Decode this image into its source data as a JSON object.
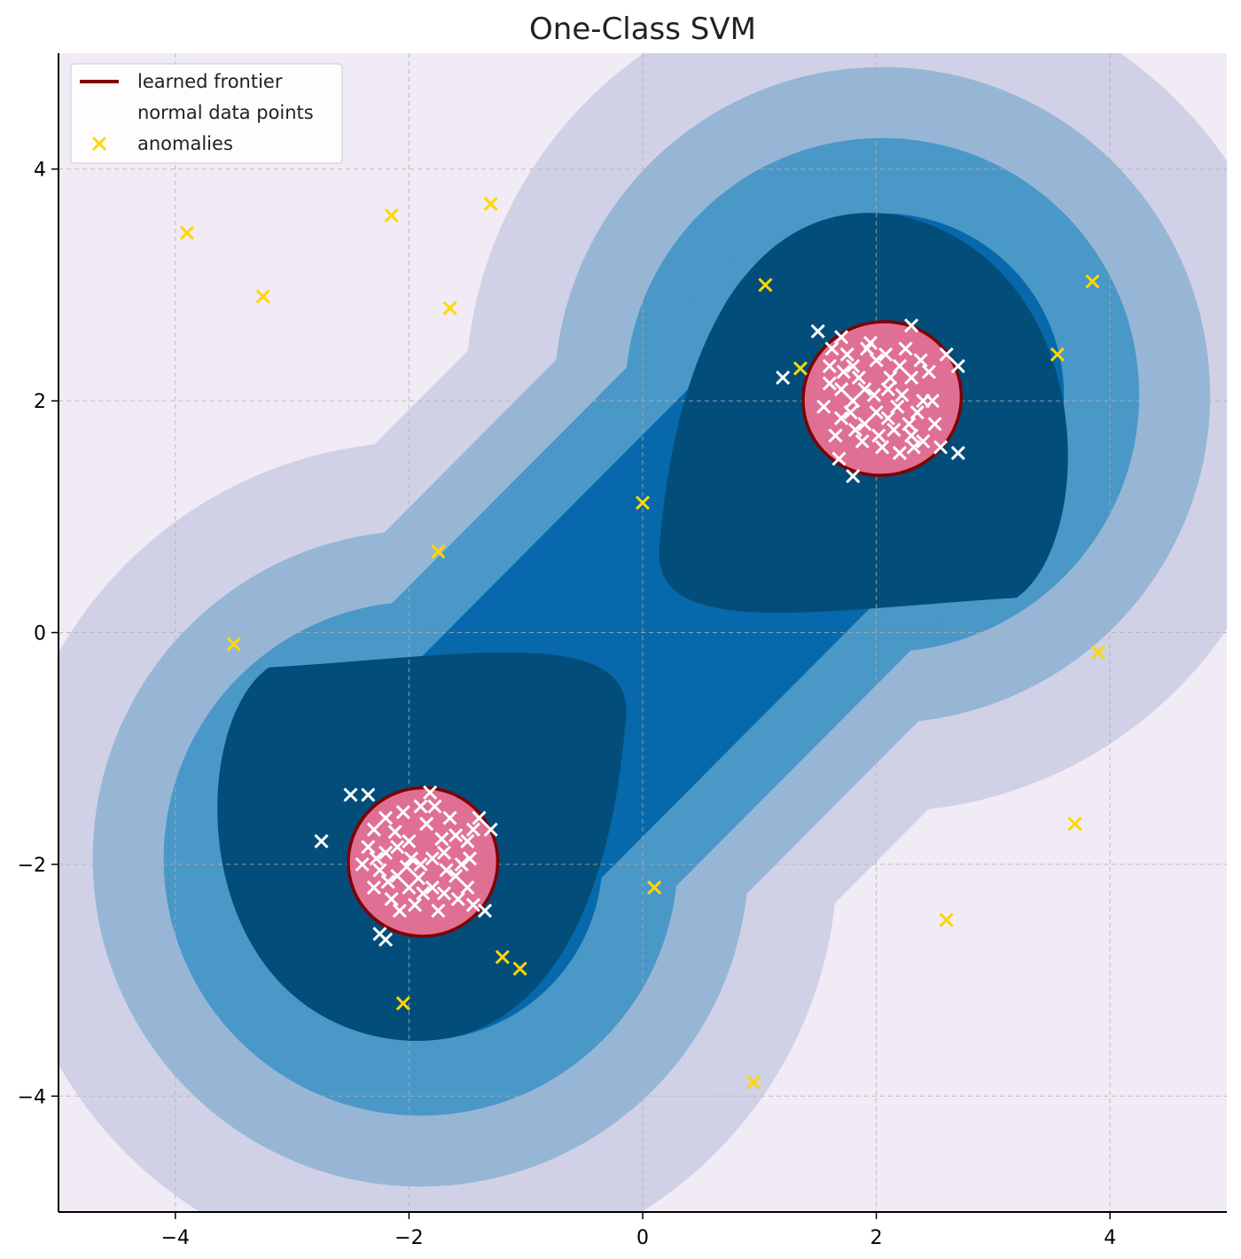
{
  "chart_data": {
    "type": "scatter",
    "title": "One-Class SVM",
    "xlabel": "",
    "ylabel": "",
    "xlim": [
      -5,
      5
    ],
    "ylim": [
      -5,
      5
    ],
    "x_ticks": [
      -4,
      -2,
      0,
      2,
      4
    ],
    "y_ticks": [
      -4,
      -2,
      0,
      2,
      4
    ],
    "x_tick_labels": [
      "−4",
      "−2",
      "0",
      "2",
      "4"
    ],
    "y_tick_labels": [
      "−4",
      "−2",
      "0",
      "2",
      "4"
    ],
    "grid": true,
    "legend_position": "top-left",
    "colors": {
      "background": "#f0ebf4",
      "level1": "#d0d1e6",
      "level2": "#97b6d6",
      "level3": "#4a98c8",
      "level4": "#0769ab",
      "level5": "#034d7a",
      "frontier_fill": "#df7093",
      "frontier_line": "#7f0000",
      "normal_points": "#ffffff",
      "anomalies": "#ffd700"
    },
    "frontier": {
      "name": "learned frontier",
      "regions": [
        {
          "center": [
            2.05,
            2.02
          ],
          "rx": 0.68,
          "ry": 0.66
        },
        {
          "center": [
            -1.88,
            -1.98
          ],
          "rx": 0.64,
          "ry": 0.64
        }
      ]
    },
    "series": [
      {
        "name": "normal data points",
        "marker": "x",
        "points": [
          [
            1.5,
            2.6
          ],
          [
            1.7,
            2.55
          ],
          [
            2.3,
            2.65
          ],
          [
            2.6,
            2.4
          ],
          [
            2.7,
            2.3
          ],
          [
            1.2,
            2.2
          ],
          [
            1.8,
            1.35
          ],
          [
            2.55,
            1.6
          ],
          [
            2.7,
            1.55
          ],
          [
            1.6,
            2.3
          ],
          [
            1.7,
            2.1
          ],
          [
            1.8,
            2.0
          ],
          [
            1.9,
            1.8
          ],
          [
            2.0,
            1.9
          ],
          [
            2.1,
            2.1
          ],
          [
            2.2,
            2.3
          ],
          [
            2.3,
            1.7
          ],
          [
            2.4,
            2.0
          ],
          [
            2.5,
            1.8
          ],
          [
            1.55,
            1.95
          ],
          [
            1.65,
            1.7
          ],
          [
            1.75,
            2.4
          ],
          [
            1.85,
            2.2
          ],
          [
            1.95,
            2.5
          ],
          [
            2.05,
            1.6
          ],
          [
            2.15,
            1.75
          ],
          [
            2.25,
            2.45
          ],
          [
            2.35,
            1.9
          ],
          [
            2.45,
            2.25
          ],
          [
            1.6,
            2.15
          ],
          [
            1.7,
            1.85
          ],
          [
            1.8,
            2.3
          ],
          [
            1.9,
            2.1
          ],
          [
            2.0,
            2.35
          ],
          [
            2.1,
            1.85
          ],
          [
            2.2,
            1.55
          ],
          [
            2.3,
            2.2
          ],
          [
            2.4,
            1.65
          ],
          [
            1.68,
            1.5
          ],
          [
            1.78,
            1.9
          ],
          [
            1.88,
            1.65
          ],
          [
            1.98,
            2.05
          ],
          [
            2.08,
            2.4
          ],
          [
            2.18,
            1.95
          ],
          [
            2.28,
            1.8
          ],
          [
            2.38,
            2.35
          ],
          [
            2.48,
            2.0
          ],
          [
            1.62,
            2.45
          ],
          [
            1.72,
            2.25
          ],
          [
            1.82,
            1.75
          ],
          [
            1.92,
            2.45
          ],
          [
            2.02,
            1.7
          ],
          [
            2.12,
            2.2
          ],
          [
            2.22,
            2.05
          ],
          [
            2.32,
            1.6
          ],
          [
            -2.5,
            -1.4
          ],
          [
            -2.35,
            -1.4
          ],
          [
            -2.75,
            -1.8
          ],
          [
            -1.3,
            -1.7
          ],
          [
            -1.35,
            -2.4
          ],
          [
            -1.45,
            -2.35
          ],
          [
            -2.25,
            -2.6
          ],
          [
            -2.2,
            -2.65
          ],
          [
            -1.4,
            -1.6
          ],
          [
            -2.3,
            -1.7
          ],
          [
            -2.2,
            -1.9
          ],
          [
            -2.1,
            -2.1
          ],
          [
            -2.0,
            -1.8
          ],
          [
            -1.9,
            -2.0
          ],
          [
            -1.8,
            -2.2
          ],
          [
            -1.7,
            -1.9
          ],
          [
            -1.6,
            -2.1
          ],
          [
            -1.5,
            -1.8
          ],
          [
            -2.25,
            -2.05
          ],
          [
            -2.15,
            -2.3
          ],
          [
            -2.05,
            -1.55
          ],
          [
            -1.95,
            -2.35
          ],
          [
            -1.85,
            -1.65
          ],
          [
            -1.75,
            -2.4
          ],
          [
            -1.65,
            -1.6
          ],
          [
            -1.55,
            -2.0
          ],
          [
            -1.45,
            -1.7
          ],
          [
            -2.35,
            -1.85
          ],
          [
            -2.3,
            -2.2
          ],
          [
            -2.2,
            -1.6
          ],
          [
            -2.1,
            -1.85
          ],
          [
            -2.0,
            -2.2
          ],
          [
            -1.9,
            -1.5
          ],
          [
            -1.8,
            -1.95
          ],
          [
            -1.7,
            -2.25
          ],
          [
            -1.6,
            -1.75
          ],
          [
            -1.5,
            -2.2
          ],
          [
            -2.4,
            -2.0
          ],
          [
            -2.28,
            -1.95
          ],
          [
            -2.18,
            -2.15
          ],
          [
            -2.08,
            -2.4
          ],
          [
            -1.98,
            -1.95
          ],
          [
            -1.88,
            -2.25
          ],
          [
            -1.78,
            -1.5
          ],
          [
            -1.68,
            -2.05
          ],
          [
            -1.58,
            -2.3
          ],
          [
            -1.48,
            -1.95
          ],
          [
            -2.12,
            -1.72
          ],
          [
            -1.92,
            -2.12
          ],
          [
            -1.72,
            -1.78
          ],
          [
            -2.02,
            -2.02
          ],
          [
            -1.82,
            -1.38
          ]
        ]
      },
      {
        "name": "anomalies",
        "marker": "x",
        "points": [
          [
            -3.9,
            3.45
          ],
          [
            -3.25,
            2.9
          ],
          [
            -2.15,
            3.6
          ],
          [
            -1.3,
            3.7
          ],
          [
            -1.65,
            2.8
          ],
          [
            -1.75,
            0.7
          ],
          [
            -3.5,
            -0.1
          ],
          [
            0.0,
            1.12
          ],
          [
            1.05,
            3.0
          ],
          [
            1.35,
            2.28
          ],
          [
            3.55,
            2.4
          ],
          [
            3.85,
            3.03
          ],
          [
            3.9,
            -0.17
          ],
          [
            3.7,
            -1.65
          ],
          [
            2.6,
            -2.48
          ],
          [
            0.1,
            -2.2
          ],
          [
            -1.2,
            -2.8
          ],
          [
            -1.05,
            -2.9
          ],
          [
            -2.05,
            -3.2
          ],
          [
            0.95,
            -3.88
          ]
        ]
      }
    ]
  }
}
